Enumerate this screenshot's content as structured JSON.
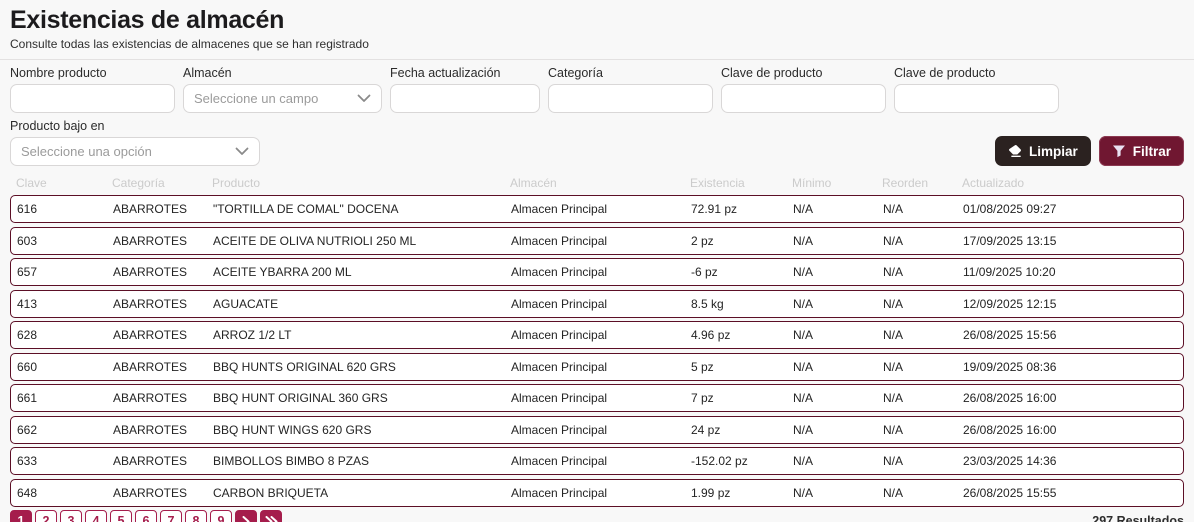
{
  "page": {
    "title": "Existencias de almacén",
    "subtitle": "Consulte todas las existencias de almacenes que se han registrado"
  },
  "filters": {
    "row1": [
      {
        "name": "nombre-producto-input",
        "label": "Nombre producto",
        "type": "text",
        "value": ""
      },
      {
        "name": "almacen-select",
        "label": "Almacén",
        "type": "select",
        "value": "Seleccione un campo"
      },
      {
        "name": "fecha-actualizacion-input",
        "label": "Fecha actualización",
        "type": "text",
        "value": ""
      },
      {
        "name": "categoria-input",
        "label": "Categoría",
        "type": "text",
        "value": ""
      },
      {
        "name": "clave-de-producto-input-1",
        "label": "Clave de producto",
        "type": "text",
        "value": ""
      },
      {
        "name": "clave-de-producto-input-2",
        "label": "Clave de producto",
        "type": "text",
        "value": ""
      }
    ],
    "row2": {
      "name": "producto-bajo-en-select",
      "label": "Producto bajo en",
      "type": "select",
      "value": "Seleccione una opción"
    }
  },
  "actions": {
    "limpiar": "Limpiar",
    "filtrar": "Filtrar"
  },
  "table": {
    "keys": [
      "clave",
      "categoria",
      "producto",
      "almacen",
      "existencia",
      "minimo",
      "reorden",
      "actualizado"
    ],
    "headers": [
      "Clave",
      "Categoría",
      "Producto",
      "Almacén",
      "Existencia",
      "Mínimo",
      "Reorden",
      "Actualizado"
    ],
    "rows": [
      [
        "616",
        "ABARROTES",
        "\"TORTILLA DE COMAL\" DOCENA",
        "Almacen Principal",
        "72.91 pz",
        "N/A",
        "N/A",
        "01/08/2025 09:27"
      ],
      [
        "603",
        "ABARROTES",
        "ACEITE DE OLIVA NUTRIOLI 250 ML",
        "Almacen Principal",
        "2 pz",
        "N/A",
        "N/A",
        "17/09/2025 13:15"
      ],
      [
        "657",
        "ABARROTES",
        "ACEITE YBARRA 200 ML",
        "Almacen Principal",
        "-6 pz",
        "N/A",
        "N/A",
        "11/09/2025 10:20"
      ],
      [
        "413",
        "ABARROTES",
        "AGUACATE",
        "Almacen Principal",
        "8.5 kg",
        "N/A",
        "N/A",
        "12/09/2025 12:15"
      ],
      [
        "628",
        "ABARROTES",
        "ARROZ 1/2 LT",
        "Almacen Principal",
        "4.96 pz",
        "N/A",
        "N/A",
        "26/08/2025 15:56"
      ],
      [
        "660",
        "ABARROTES",
        "BBQ HUNTS ORIGINAL 620 GRS",
        "Almacen Principal",
        "5 pz",
        "N/A",
        "N/A",
        "19/09/2025 08:36"
      ],
      [
        "661",
        "ABARROTES",
        "BBQ HUNT ORIGINAL 360 GRS",
        "Almacen Principal",
        "7 pz",
        "N/A",
        "N/A",
        "26/08/2025 16:00"
      ],
      [
        "662",
        "ABARROTES",
        "BBQ HUNT WINGS 620 GRS",
        "Almacen Principal",
        "24 pz",
        "N/A",
        "N/A",
        "26/08/2025 16:00"
      ],
      [
        "633",
        "ABARROTES",
        "BIMBOLLOS BIMBO 8 PZAS",
        "Almacen Principal",
        "-152.02 pz",
        "N/A",
        "N/A",
        "23/03/2025 14:36"
      ],
      [
        "648",
        "ABARROTES",
        "CARBON BRIQUETA",
        "Almacen Principal",
        "1.99 pz",
        "N/A",
        "N/A",
        "26/08/2025 15:55"
      ]
    ]
  },
  "pagination": {
    "pages": [
      "1",
      "2",
      "3",
      "4",
      "5",
      "6",
      "7",
      "8",
      "9"
    ],
    "active": "1"
  },
  "footer": {
    "results": "297 Resultados"
  },
  "colors": {
    "accent_maroon_dark": "#701731",
    "accent_crimson": "#a51d4c",
    "row_border": "#5c0f26",
    "dark_button": "#2b2220"
  }
}
